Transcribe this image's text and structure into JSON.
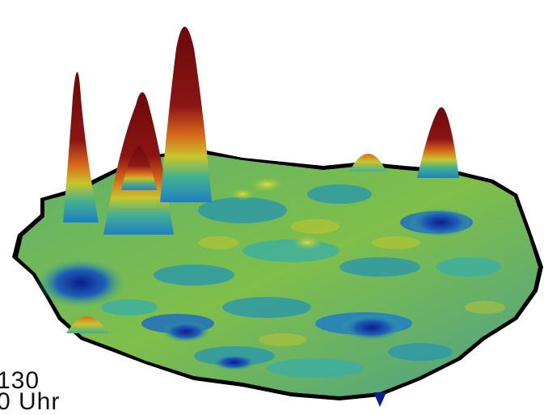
{
  "surface": {
    "colors": {
      "low": "#0a1f8c",
      "mid_low": "#1f7fc4",
      "mid": "#43b08f",
      "mid_high": "#c9c62a",
      "high": "#d86a1b",
      "peak": "#6b0a0a",
      "coast_shadow": "#000000"
    }
  },
  "caption": {
    "line1": "130",
    "line2": "0 Uhr"
  }
}
